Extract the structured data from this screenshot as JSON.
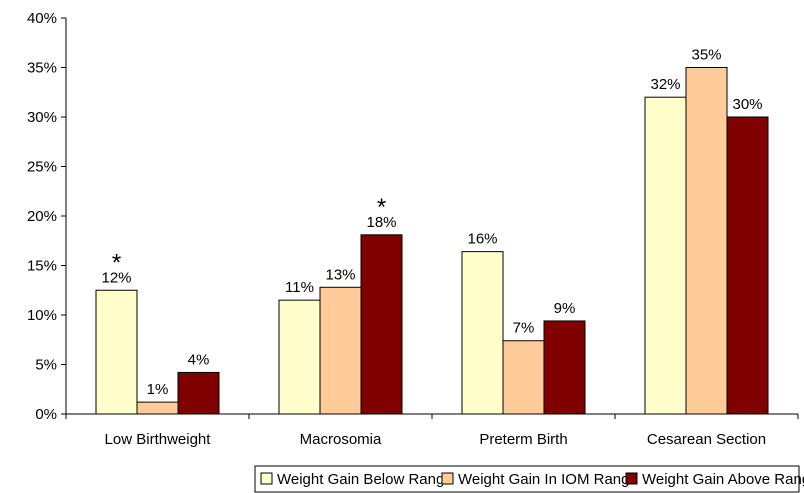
{
  "chart_data": {
    "type": "bar",
    "categories": [
      "Low Birthweight",
      "Macrosomia",
      "Preterm Birth",
      "Cesarean Section"
    ],
    "series": [
      {
        "name": "Weight Gain Below Range",
        "values": [
          12.5,
          11.5,
          16.4,
          32
        ],
        "labels": [
          "12%",
          "11%",
          "16%",
          "32%"
        ],
        "color": "#FFFFCC"
      },
      {
        "name": "Weight Gain In IOM Range",
        "values": [
          1.2,
          12.8,
          7.4,
          35
        ],
        "labels": [
          "1%",
          "13%",
          "7%",
          "35%"
        ],
        "color": "#FFCC99"
      },
      {
        "name": "Weight Gain Above Range",
        "values": [
          4.2,
          18.1,
          9.4,
          30
        ],
        "labels": [
          "4%",
          "18%",
          "9%",
          "30%"
        ],
        "color": "#800000"
      }
    ],
    "annotations": [
      {
        "category": 0,
        "series": 0,
        "text": "*"
      },
      {
        "category": 1,
        "series": 2,
        "text": "*"
      }
    ],
    "ylim": [
      0,
      40
    ],
    "yticks": [
      "0%",
      "5%",
      "10%",
      "15%",
      "20%",
      "25%",
      "30%",
      "35%",
      "40%"
    ],
    "grid": false,
    "legend": "bottom"
  }
}
